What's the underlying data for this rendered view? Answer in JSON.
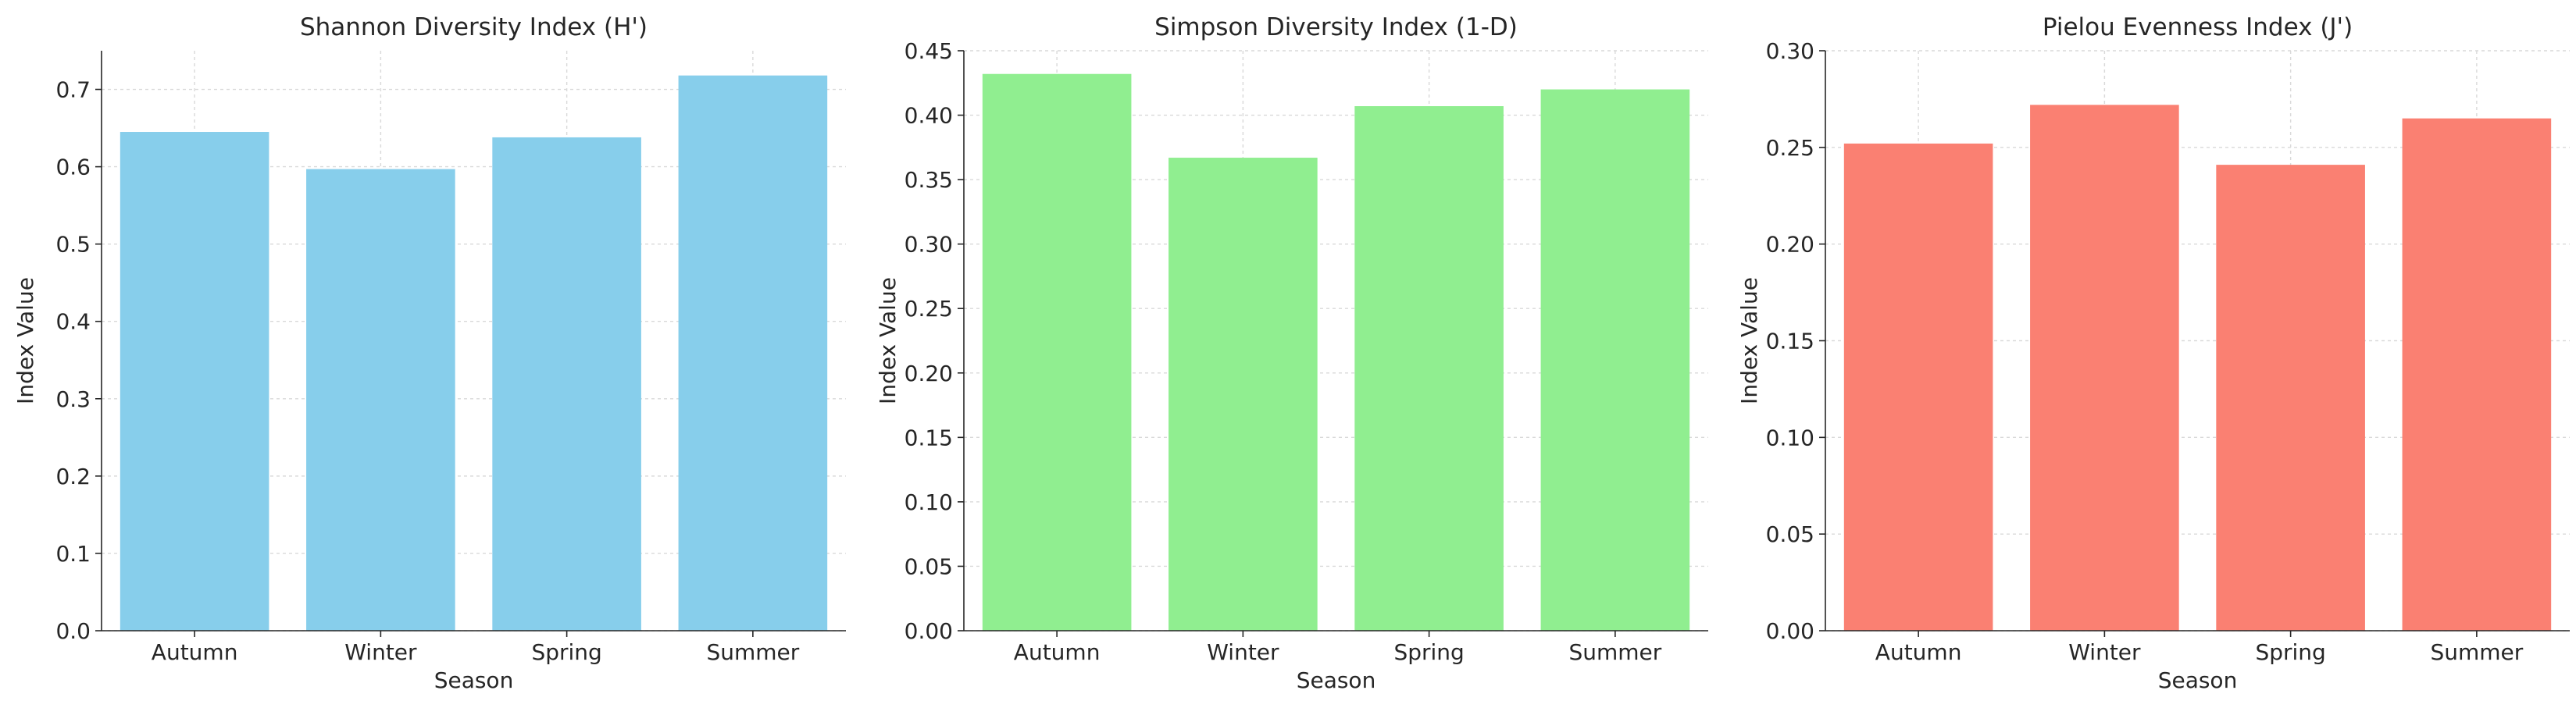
{
  "chart_data": [
    {
      "type": "bar",
      "title": "Shannon Diversity Index (H')",
      "xlabel": "Season",
      "ylabel": "Index Value",
      "categories": [
        "Autumn",
        "Winter",
        "Spring",
        "Summer"
      ],
      "values": [
        0.645,
        0.597,
        0.638,
        0.718
      ],
      "ylim": [
        0,
        0.75
      ],
      "yticks": [
        0.0,
        0.1,
        0.2,
        0.3,
        0.4,
        0.5,
        0.6,
        0.7
      ],
      "tick_decimals": 1,
      "color": "#87ceeb",
      "grid": true
    },
    {
      "type": "bar",
      "title": "Simpson Diversity Index (1-D)",
      "xlabel": "Season",
      "ylabel": "Index Value",
      "categories": [
        "Autumn",
        "Winter",
        "Spring",
        "Summer"
      ],
      "values": [
        0.432,
        0.367,
        0.407,
        0.42
      ],
      "ylim": [
        0,
        0.45
      ],
      "yticks": [
        0.0,
        0.05,
        0.1,
        0.15,
        0.2,
        0.25,
        0.3,
        0.35,
        0.4,
        0.45
      ],
      "tick_decimals": 2,
      "color": "#90ee90",
      "grid": true
    },
    {
      "type": "bar",
      "title": "Pielou Evenness Index (J')",
      "xlabel": "Season",
      "ylabel": "Index Value",
      "categories": [
        "Autumn",
        "Winter",
        "Spring",
        "Summer"
      ],
      "values": [
        0.252,
        0.272,
        0.241,
        0.265
      ],
      "ylim": [
        0,
        0.3
      ],
      "yticks": [
        0.0,
        0.05,
        0.1,
        0.15,
        0.2,
        0.25,
        0.3
      ],
      "tick_decimals": 2,
      "color": "#fa8072",
      "grid": true
    }
  ]
}
